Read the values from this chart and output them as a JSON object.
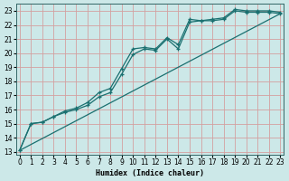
{
  "bg_color": "#cce8e8",
  "grid_color": "#e0b0b0",
  "line_color": "#1a7070",
  "xlabel": "Humidex (Indice chaleur)",
  "xlim": [
    -0.3,
    23.3
  ],
  "ylim": [
    12.8,
    23.5
  ],
  "xticks": [
    0,
    1,
    2,
    3,
    4,
    5,
    6,
    7,
    8,
    9,
    10,
    11,
    12,
    13,
    14,
    15,
    16,
    17,
    18,
    19,
    20,
    21,
    22,
    23
  ],
  "yticks": [
    13,
    14,
    15,
    16,
    17,
    18,
    19,
    20,
    21,
    22,
    23
  ],
  "curve1_x": [
    0,
    1,
    2,
    3,
    4,
    5,
    6,
    7,
    8,
    9,
    10,
    11,
    12,
    13,
    14,
    15,
    16,
    17,
    18,
    19,
    20,
    21,
    22,
    23
  ],
  "curve1_y": [
    13.1,
    15.0,
    15.1,
    15.5,
    15.9,
    16.1,
    16.5,
    17.2,
    17.5,
    18.9,
    20.3,
    20.4,
    20.3,
    21.1,
    20.6,
    22.4,
    22.3,
    22.4,
    22.5,
    23.1,
    23.0,
    23.0,
    23.0,
    22.9
  ],
  "curve2_x": [
    0,
    1,
    2,
    3,
    4,
    5,
    6,
    7,
    8,
    9,
    10,
    11,
    12,
    13,
    14,
    15,
    16,
    17,
    18,
    19,
    20,
    21,
    22,
    23
  ],
  "curve2_y": [
    13.1,
    15.0,
    15.1,
    15.5,
    15.8,
    16.0,
    16.3,
    16.9,
    17.2,
    18.5,
    19.9,
    20.3,
    20.2,
    21.0,
    20.3,
    22.2,
    22.3,
    22.3,
    22.4,
    23.0,
    22.9,
    22.9,
    22.9,
    22.8
  ],
  "line3_x": [
    0,
    23
  ],
  "line3_y": [
    13.1,
    22.8
  ]
}
